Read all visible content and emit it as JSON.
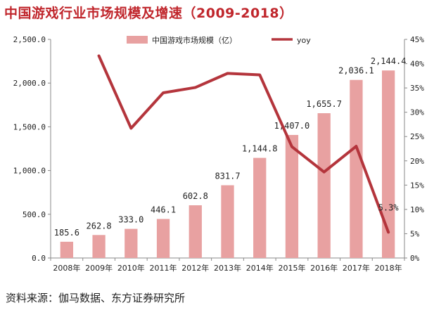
{
  "title": "中国游戏行业市场规模及增速（2009-2018）",
  "source": "资料来源：伽马数据、东方证券研究所",
  "colors": {
    "title": "#c0262c",
    "bar": "#e8a1a1",
    "line": "#b4353c",
    "axis": "#888888"
  },
  "chart_data": {
    "type": "bar+line",
    "title": "中国游戏行业市场规模及增速（2009-2018）",
    "categories": [
      "2008年",
      "2009年",
      "2010年",
      "2011年",
      "2012年",
      "2013年",
      "2014年",
      "2015年",
      "2016年",
      "2017年",
      "2018年"
    ],
    "series": [
      {
        "name": "中国游戏市场规模（亿）",
        "type": "bar",
        "axis": "left",
        "values": [
          185.6,
          262.8,
          333.0,
          446.1,
          602.8,
          831.7,
          1144.8,
          1407.0,
          1655.7,
          2036.1,
          2144.4
        ],
        "labels": [
          "185.6",
          "262.8",
          "333.0",
          "446.1",
          "602.8",
          "831.7",
          "1,144.8",
          "1,407.0",
          "1,655.7",
          "2,036.1",
          "2,144.4"
        ]
      },
      {
        "name": "yoy",
        "type": "line",
        "axis": "right",
        "values": [
          null,
          41.6,
          26.7,
          34.0,
          35.1,
          38.0,
          37.7,
          22.9,
          17.7,
          23.0,
          5.3
        ],
        "point_labels": {
          "10": "5.3%"
        }
      }
    ],
    "left_axis": {
      "min": 0,
      "max": 2500,
      "step": 500,
      "tick_labels": [
        "0.0",
        "500.0",
        "1,000.0",
        "1,500.0",
        "2,000.0",
        "2,500.0"
      ]
    },
    "right_axis": {
      "min": 0,
      "max": 45,
      "step": 5,
      "tick_labels": [
        "0%",
        "5%",
        "10%",
        "15%",
        "20%",
        "25%",
        "30%",
        "35%",
        "40%",
        "45%"
      ]
    },
    "legend": {
      "position": "top-center",
      "entries": [
        "中国游戏市场规模（亿）",
        "yoy"
      ]
    }
  }
}
